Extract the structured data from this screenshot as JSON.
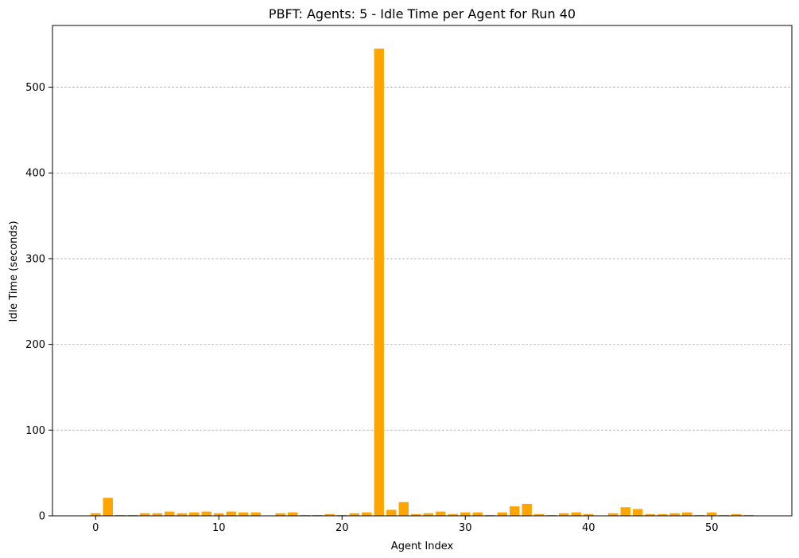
{
  "chart_data": {
    "type": "bar",
    "title": "PBFT: Agents: 5 - Idle Time per Agent for Run 40",
    "xlabel": "Agent Index",
    "ylabel": "Idle Time (seconds)",
    "x": [
      0,
      1,
      2,
      3,
      4,
      5,
      6,
      7,
      8,
      9,
      10,
      11,
      12,
      13,
      14,
      15,
      16,
      17,
      18,
      19,
      20,
      21,
      22,
      23,
      24,
      25,
      26,
      27,
      28,
      29,
      30,
      31,
      32,
      33,
      34,
      35,
      36,
      37,
      38,
      39,
      40,
      41,
      42,
      43,
      44,
      45,
      46,
      47,
      48,
      49,
      50,
      51,
      52,
      53
    ],
    "values": [
      3,
      21,
      1,
      1,
      3,
      3,
      5,
      3,
      4,
      5,
      3,
      5,
      4,
      4,
      0,
      3,
      4,
      1,
      1,
      2,
      1,
      3,
      4,
      545,
      7,
      16,
      2,
      3,
      5,
      2,
      4,
      4,
      1,
      4,
      11,
      14,
      2,
      1,
      3,
      4,
      2,
      0,
      3,
      10,
      8,
      2,
      2,
      3,
      4,
      1,
      4,
      1,
      2,
      1
    ],
    "xlim": [
      -3.5,
      56.5
    ],
    "ylim": [
      0,
      572
    ],
    "x_ticks": [
      0,
      10,
      20,
      30,
      40,
      50
    ],
    "y_ticks": [
      0,
      100,
      200,
      300,
      400,
      500
    ],
    "grid": "y-dashed",
    "bar_color": "#ffa500"
  }
}
